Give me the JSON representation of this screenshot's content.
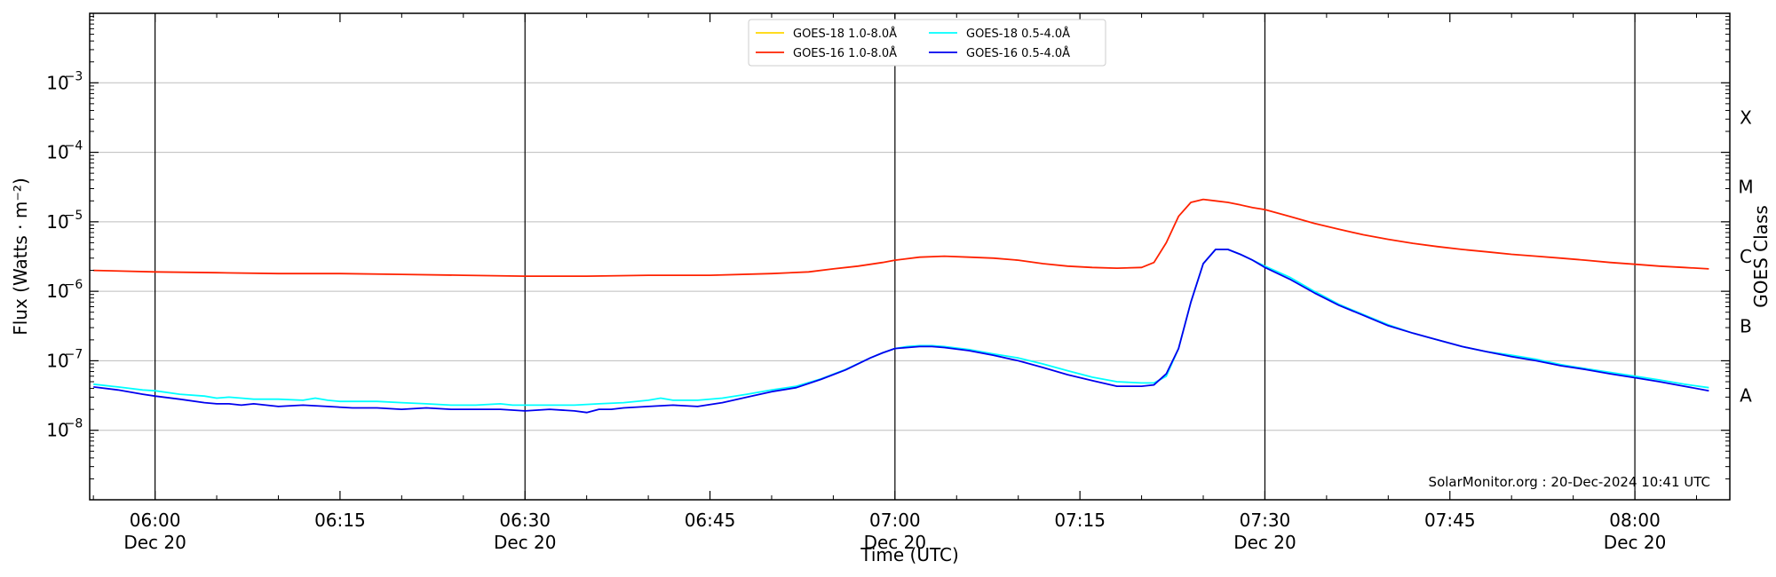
{
  "chart_data": {
    "type": "line",
    "title": "",
    "xlabel": "Time (UTC)",
    "ylabel": "Flux (Watts · m⁻²)",
    "ylabel_right": "GOES Class",
    "x_unit": "minutes after 06:00 UTC, 20-Dec-2024",
    "xlim": [
      -5.3,
      127.7
    ],
    "ylim": [
      1e-09,
      0.01
    ],
    "yscale": "log",
    "grid": "horizontal",
    "legend_placement": "top-center",
    "x_ticks": [
      {
        "x": 0,
        "time": "06:00",
        "date": "Dec 20",
        "major": true
      },
      {
        "x": 15,
        "time": "06:15",
        "date": "",
        "major": false
      },
      {
        "x": 30,
        "time": "06:30",
        "date": "Dec 20",
        "major": true
      },
      {
        "x": 45,
        "time": "06:45",
        "date": "",
        "major": false
      },
      {
        "x": 60,
        "time": "07:00",
        "date": "Dec 20",
        "major": true
      },
      {
        "x": 75,
        "time": "07:15",
        "date": "",
        "major": false
      },
      {
        "x": 90,
        "time": "07:30",
        "date": "Dec 20",
        "major": true
      },
      {
        "x": 105,
        "time": "07:45",
        "date": "",
        "major": false
      },
      {
        "x": 120,
        "time": "08:00",
        "date": "Dec 20",
        "major": true
      }
    ],
    "y_ticks": [
      {
        "exp": -8,
        "label": "10"
      },
      {
        "exp": -7,
        "label": "10"
      },
      {
        "exp": -6,
        "label": "10"
      },
      {
        "exp": -5,
        "label": "10"
      },
      {
        "exp": -4,
        "label": "10"
      },
      {
        "exp": -3,
        "label": "10"
      }
    ],
    "goes_classes": [
      {
        "label": "A",
        "exp": -7.5
      },
      {
        "label": "B",
        "exp": -6.5
      },
      {
        "label": "C",
        "exp": -5.5
      },
      {
        "label": "M",
        "exp": -4.5
      },
      {
        "label": "X",
        "exp": -3.5
      }
    ],
    "series": [
      {
        "name": "GOES-18 1.0-8.0Å",
        "color": "#ffd700",
        "x": [],
        "y": []
      },
      {
        "name": "GOES-18 0.5-4.0Å",
        "color": "#00ffff",
        "x": [
          -5,
          -3,
          -1,
          0,
          2,
          4,
          5,
          6,
          7,
          8,
          10,
          12,
          13,
          14,
          15,
          16,
          18,
          20,
          22,
          24,
          26,
          28,
          29,
          30,
          32,
          34,
          36,
          38,
          40,
          41,
          42,
          44,
          46,
          48,
          50,
          52,
          54,
          56,
          58,
          59,
          60,
          61,
          62,
          63,
          64,
          66,
          68,
          70,
          72,
          74,
          76,
          78,
          80,
          81,
          82,
          83,
          84,
          85,
          86,
          87,
          88,
          89,
          90,
          92,
          94,
          96,
          98,
          100,
          102,
          104,
          106,
          108,
          110,
          112,
          114,
          116,
          118,
          120,
          122,
          124,
          126
        ],
        "y": [
          4.6e-08,
          4.2e-08,
          3.8e-08,
          3.7e-08,
          3.3e-08,
          3.1e-08,
          2.9e-08,
          3e-08,
          2.9e-08,
          2.8e-08,
          2.8e-08,
          2.7e-08,
          2.9e-08,
          2.7e-08,
          2.6e-08,
          2.6e-08,
          2.6e-08,
          2.5e-08,
          2.4e-08,
          2.3e-08,
          2.3e-08,
          2.4e-08,
          2.3e-08,
          2.3e-08,
          2.3e-08,
          2.3e-08,
          2.4e-08,
          2.5e-08,
          2.7e-08,
          2.9e-08,
          2.7e-08,
          2.7e-08,
          2.9e-08,
          3.3e-08,
          3.8e-08,
          4.3e-08,
          5.5e-08,
          7.5e-08,
          1.1e-07,
          1.3e-07,
          1.5e-07,
          1.6e-07,
          1.65e-07,
          1.65e-07,
          1.6e-07,
          1.45e-07,
          1.25e-07,
          1.1e-07,
          9e-08,
          7.2e-08,
          5.8e-08,
          5e-08,
          4.8e-08,
          4.8e-08,
          6e-08,
          1.5e-07,
          7e-07,
          2.5e-06,
          4e-06,
          4e-06,
          3.4e-06,
          2.8e-06,
          2.3e-06,
          1.6e-06,
          1e-06,
          6.5e-07,
          4.6e-07,
          3.3e-07,
          2.5e-07,
          2e-07,
          1.6e-07,
          1.35e-07,
          1.2e-07,
          1.05e-07,
          8.8e-08,
          7.7e-08,
          6.8e-08,
          6e-08,
          5.3e-08,
          4.6e-08,
          4.1e-08
        ]
      },
      {
        "name": "GOES-16 1.0-8.0Å",
        "color": "#ff2200",
        "x": [
          -5,
          0,
          5,
          10,
          15,
          20,
          25,
          30,
          35,
          40,
          45,
          50,
          53,
          55,
          57,
          59,
          60,
          62,
          64,
          66,
          68,
          70,
          72,
          74,
          76,
          78,
          80,
          81,
          82,
          83,
          84,
          85,
          86,
          87,
          88,
          89,
          90,
          92,
          94,
          96,
          98,
          100,
          102,
          104,
          106,
          108,
          110,
          112,
          114,
          116,
          118,
          120,
          122,
          124,
          126
        ],
        "y": [
          2e-06,
          1.9e-06,
          1.85e-06,
          1.8e-06,
          1.8e-06,
          1.75e-06,
          1.7e-06,
          1.65e-06,
          1.65e-06,
          1.7e-06,
          1.7e-06,
          1.8e-06,
          1.9e-06,
          2.1e-06,
          2.3e-06,
          2.6e-06,
          2.8e-06,
          3.1e-06,
          3.2e-06,
          3.1e-06,
          3e-06,
          2.8e-06,
          2.5e-06,
          2.3e-06,
          2.2e-06,
          2.15e-06,
          2.2e-06,
          2.6e-06,
          5e-06,
          1.2e-05,
          1.9e-05,
          2.1e-05,
          2e-05,
          1.9e-05,
          1.75e-05,
          1.6e-05,
          1.5e-05,
          1.2e-05,
          9.5e-06,
          7.8e-06,
          6.5e-06,
          5.6e-06,
          4.9e-06,
          4.4e-06,
          4e-06,
          3.7e-06,
          3.4e-06,
          3.2e-06,
          3e-06,
          2.8e-06,
          2.6e-06,
          2.45e-06,
          2.3e-06,
          2.2e-06,
          2.1e-06
        ]
      },
      {
        "name": "GOES-16 0.5-4.0Å",
        "color": "#0000ee",
        "x": [
          -5,
          -3,
          -1,
          0,
          2,
          4,
          5,
          6,
          7,
          8,
          10,
          12,
          14,
          16,
          18,
          20,
          22,
          24,
          26,
          28,
          30,
          32,
          34,
          35,
          36,
          37,
          38,
          40,
          42,
          44,
          46,
          48,
          50,
          52,
          54,
          56,
          58,
          59,
          60,
          61,
          62,
          63,
          64,
          66,
          68,
          70,
          72,
          74,
          76,
          78,
          80,
          81,
          82,
          83,
          84,
          85,
          86,
          87,
          88,
          89,
          90,
          92,
          94,
          96,
          98,
          100,
          102,
          104,
          106,
          108,
          110,
          112,
          114,
          116,
          118,
          120,
          122,
          124,
          126
        ],
        "y": [
          4.2e-08,
          3.8e-08,
          3.3e-08,
          3.1e-08,
          2.8e-08,
          2.5e-08,
          2.4e-08,
          2.4e-08,
          2.3e-08,
          2.4e-08,
          2.2e-08,
          2.3e-08,
          2.2e-08,
          2.1e-08,
          2.1e-08,
          2e-08,
          2.1e-08,
          2e-08,
          2e-08,
          2e-08,
          1.9e-08,
          2e-08,
          1.9e-08,
          1.8e-08,
          2e-08,
          2e-08,
          2.1e-08,
          2.2e-08,
          2.3e-08,
          2.2e-08,
          2.5e-08,
          3e-08,
          3.6e-08,
          4.1e-08,
          5.4e-08,
          7.4e-08,
          1.1e-07,
          1.3e-07,
          1.5e-07,
          1.55e-07,
          1.6e-07,
          1.6e-07,
          1.55e-07,
          1.4e-07,
          1.2e-07,
          1e-07,
          8e-08,
          6.3e-08,
          5.2e-08,
          4.3e-08,
          4.3e-08,
          4.5e-08,
          6.5e-08,
          1.5e-07,
          7e-07,
          2.5e-06,
          4e-06,
          4e-06,
          3.4e-06,
          2.8e-06,
          2.2e-06,
          1.5e-06,
          9.5e-07,
          6.3e-07,
          4.5e-07,
          3.2e-07,
          2.5e-07,
          2e-07,
          1.6e-07,
          1.35e-07,
          1.15e-07,
          1e-07,
          8.5e-08,
          7.5e-08,
          6.5e-08,
          5.7e-08,
          5e-08,
          4.3e-08,
          3.7e-08
        ]
      }
    ],
    "annotation": "SolarMonitor.org : 20-Dec-2024 10:41 UTC"
  }
}
